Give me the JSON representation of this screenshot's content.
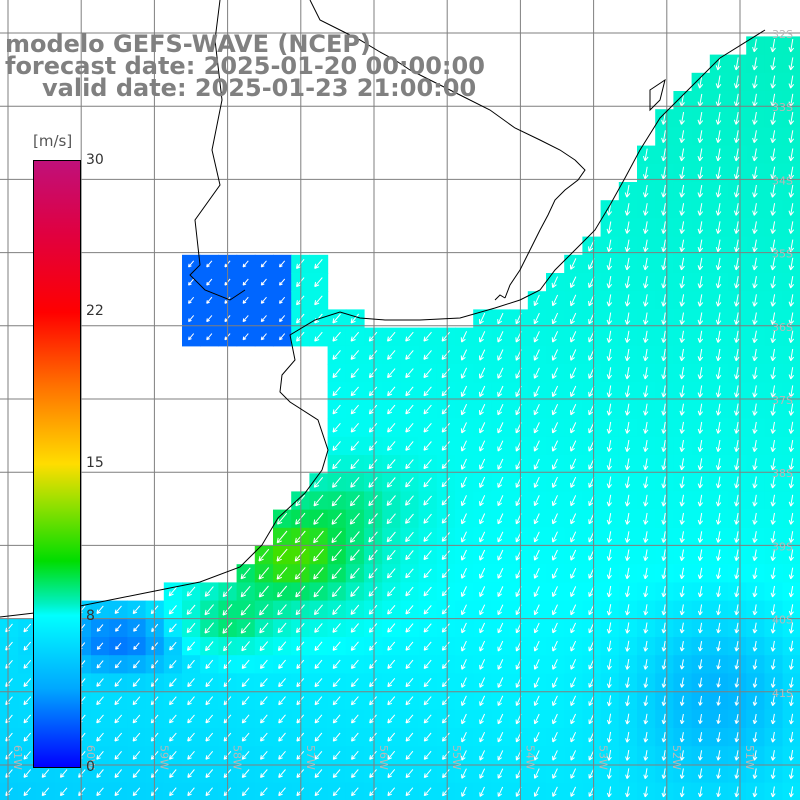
{
  "title": {
    "line1": "modelo GEFS-WAVE (NCEP)",
    "line2": "forecast date: 2025-01-20 00:00:00",
    "line3": "valid date: 2025-01-23 21:00:00"
  },
  "colorbar": {
    "unit": "[m/s]",
    "ticks": [
      "30",
      "22",
      "15",
      "8",
      "0"
    ],
    "min": 0,
    "max": 30
  },
  "map": {
    "lat_labels": [
      "32S",
      "33S",
      "34S",
      "35S",
      "36S",
      "37S",
      "38S",
      "39S",
      "40S",
      "41S"
    ],
    "lon_labels": [
      "61W",
      "60W",
      "59W",
      "58W",
      "57W",
      "56W",
      "55W",
      "54W",
      "53W",
      "52W",
      "51W"
    ],
    "colors": {
      "land": "#ffffff",
      "grid": "#7f7f7f",
      "coast": "#000000",
      "arrows": "#ffffff"
    }
  }
}
